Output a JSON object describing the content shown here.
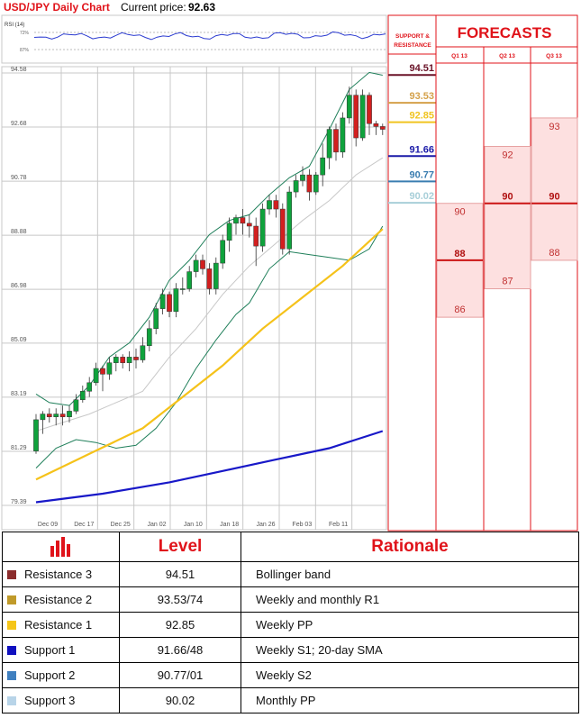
{
  "header": {
    "title": "USD/JPY Daily Chart",
    "price_label": "Current price:",
    "price_value": "92.63"
  },
  "rsi": {
    "label": "RSI (14)",
    "levels": [
      {
        "label": "72%",
        "value": 72
      },
      {
        "label": "87%",
        "value": 87
      }
    ]
  },
  "chart_data": [
    {
      "type": "candlestick",
      "title": "USD/JPY Daily Chart",
      "y_ticks": [
        "94.58",
        "92.68",
        "90.78",
        "88.88",
        "86.98",
        "85.09",
        "83.19",
        "81.29",
        "79.39"
      ],
      "x_ticks": [
        "Dec 09",
        "Dec 17",
        "Dec 25",
        "Jan 02",
        "Jan 10",
        "Jan 18",
        "Jan 26",
        "Feb 03",
        "Feb 11"
      ],
      "ylim": [
        79.39,
        94.58
      ],
      "grid": true,
      "candles": [
        {
          "o": 81.3,
          "h": 82.6,
          "l": 81.2,
          "c": 82.4
        },
        {
          "o": 82.4,
          "h": 82.7,
          "l": 81.9,
          "c": 82.6
        },
        {
          "o": 82.6,
          "h": 82.8,
          "l": 82.3,
          "c": 82.5
        },
        {
          "o": 82.5,
          "h": 82.8,
          "l": 82.2,
          "c": 82.6
        },
        {
          "o": 82.6,
          "h": 82.9,
          "l": 82.2,
          "c": 82.5
        },
        {
          "o": 82.5,
          "h": 82.9,
          "l": 82.3,
          "c": 82.7
        },
        {
          "o": 82.7,
          "h": 83.3,
          "l": 82.6,
          "c": 83.1
        },
        {
          "o": 83.1,
          "h": 83.6,
          "l": 83.0,
          "c": 83.4
        },
        {
          "o": 83.4,
          "h": 83.9,
          "l": 83.2,
          "c": 83.7
        },
        {
          "o": 83.7,
          "h": 84.4,
          "l": 83.6,
          "c": 84.2
        },
        {
          "o": 84.2,
          "h": 84.3,
          "l": 83.4,
          "c": 84.0
        },
        {
          "o": 84.0,
          "h": 84.6,
          "l": 83.8,
          "c": 84.4
        },
        {
          "o": 84.4,
          "h": 84.7,
          "l": 84.1,
          "c": 84.6
        },
        {
          "o": 84.6,
          "h": 84.7,
          "l": 84.2,
          "c": 84.4
        },
        {
          "o": 84.4,
          "h": 84.8,
          "l": 84.1,
          "c": 84.6
        },
        {
          "o": 84.6,
          "h": 84.9,
          "l": 84.2,
          "c": 84.5
        },
        {
          "o": 84.5,
          "h": 85.3,
          "l": 84.4,
          "c": 85.0
        },
        {
          "o": 85.0,
          "h": 85.9,
          "l": 84.8,
          "c": 85.6
        },
        {
          "o": 85.6,
          "h": 86.5,
          "l": 85.4,
          "c": 86.3
        },
        {
          "o": 86.3,
          "h": 87.0,
          "l": 86.1,
          "c": 86.8
        },
        {
          "o": 86.8,
          "h": 86.9,
          "l": 86.0,
          "c": 86.2
        },
        {
          "o": 86.2,
          "h": 87.2,
          "l": 86.0,
          "c": 87.0
        },
        {
          "o": 87.0,
          "h": 87.4,
          "l": 86.8,
          "c": 87.0
        },
        {
          "o": 87.0,
          "h": 87.8,
          "l": 86.9,
          "c": 87.6
        },
        {
          "o": 87.6,
          "h": 88.2,
          "l": 87.4,
          "c": 88.0
        },
        {
          "o": 88.0,
          "h": 88.2,
          "l": 87.5,
          "c": 87.7
        },
        {
          "o": 87.7,
          "h": 87.9,
          "l": 86.8,
          "c": 87.0
        },
        {
          "o": 87.0,
          "h": 88.1,
          "l": 86.8,
          "c": 87.9
        },
        {
          "o": 87.9,
          "h": 88.9,
          "l": 87.7,
          "c": 88.7
        },
        {
          "o": 88.7,
          "h": 89.5,
          "l": 88.3,
          "c": 89.3
        },
        {
          "o": 89.3,
          "h": 89.6,
          "l": 88.9,
          "c": 89.5
        },
        {
          "o": 89.5,
          "h": 89.8,
          "l": 88.9,
          "c": 89.3
        },
        {
          "o": 89.3,
          "h": 89.6,
          "l": 88.8,
          "c": 89.2
        },
        {
          "o": 89.2,
          "h": 89.5,
          "l": 87.8,
          "c": 88.5
        },
        {
          "o": 88.5,
          "h": 90.0,
          "l": 88.3,
          "c": 89.8
        },
        {
          "o": 89.8,
          "h": 90.3,
          "l": 89.6,
          "c": 90.1
        },
        {
          "o": 90.1,
          "h": 90.3,
          "l": 89.5,
          "c": 89.8
        },
        {
          "o": 89.8,
          "h": 90.0,
          "l": 88.2,
          "c": 88.4
        },
        {
          "o": 88.4,
          "h": 90.6,
          "l": 88.2,
          "c": 90.4
        },
        {
          "o": 90.4,
          "h": 91.0,
          "l": 90.2,
          "c": 90.8
        },
        {
          "o": 90.8,
          "h": 91.3,
          "l": 90.6,
          "c": 91.0
        },
        {
          "o": 91.0,
          "h": 91.2,
          "l": 90.1,
          "c": 90.4
        },
        {
          "o": 90.4,
          "h": 91.1,
          "l": 90.3,
          "c": 91.0
        },
        {
          "o": 91.0,
          "h": 92.1,
          "l": 90.6,
          "c": 91.6
        },
        {
          "o": 91.6,
          "h": 92.7,
          "l": 91.2,
          "c": 92.6
        },
        {
          "o": 92.6,
          "h": 92.8,
          "l": 91.5,
          "c": 91.8
        },
        {
          "o": 91.8,
          "h": 93.2,
          "l": 91.6,
          "c": 93.0
        },
        {
          "o": 93.0,
          "h": 94.1,
          "l": 92.8,
          "c": 93.8
        },
        {
          "o": 93.8,
          "h": 94.0,
          "l": 92.0,
          "c": 92.3
        },
        {
          "o": 92.3,
          "h": 94.0,
          "l": 92.2,
          "c": 93.8
        },
        {
          "o": 93.8,
          "h": 93.9,
          "l": 92.4,
          "c": 92.8
        },
        {
          "o": 92.8,
          "h": 92.9,
          "l": 92.4,
          "c": 92.7
        },
        {
          "o": 92.7,
          "h": 92.8,
          "l": 92.4,
          "c": 92.6
        }
      ],
      "series": [
        {
          "key": "bb_upper",
          "color": "#1f7f5a",
          "points": [
            [
              0,
              83.3
            ],
            [
              2,
              83.0
            ],
            [
              5,
              82.9
            ],
            [
              8,
              83.6
            ],
            [
              11,
              84.6
            ],
            [
              14,
              85.1
            ],
            [
              17,
              86.0
            ],
            [
              20,
              87.3
            ],
            [
              23,
              88.0
            ],
            [
              26,
              88.9
            ],
            [
              29,
              89.4
            ],
            [
              32,
              89.6
            ],
            [
              35,
              90.3
            ],
            [
              38,
              90.9
            ],
            [
              41,
              91.3
            ],
            [
              44,
              92.6
            ],
            [
              47,
              94.0
            ],
            [
              50,
              94.6
            ],
            [
              52,
              94.5
            ]
          ]
        },
        {
          "key": "bb_lower",
          "color": "#1f7f5a",
          "points": [
            [
              0,
              80.7
            ],
            [
              3,
              81.4
            ],
            [
              6,
              81.7
            ],
            [
              9,
              81.6
            ],
            [
              12,
              81.4
            ],
            [
              15,
              81.5
            ],
            [
              18,
              82.1
            ],
            [
              21,
              83.0
            ],
            [
              24,
              84.2
            ],
            [
              27,
              85.2
            ],
            [
              30,
              86.1
            ],
            [
              32,
              86.5
            ],
            [
              35,
              87.7
            ],
            [
              38,
              88.3
            ],
            [
              41,
              88.2
            ],
            [
              44,
              88.1
            ],
            [
              47,
              88.0
            ],
            [
              50,
              88.4
            ],
            [
              52,
              89.2
            ]
          ]
        },
        {
          "key": "bb_mid",
          "color": "#c8c8c8",
          "points": [
            [
              0,
              82.0
            ],
            [
              4,
              82.3
            ],
            [
              8,
              82.6
            ],
            [
              12,
              83.0
            ],
            [
              16,
              83.4
            ],
            [
              20,
              84.6
            ],
            [
              24,
              85.6
            ],
            [
              28,
              86.8
            ],
            [
              32,
              87.8
            ],
            [
              36,
              88.6
            ],
            [
              40,
              89.4
            ],
            [
              44,
              90.1
            ],
            [
              48,
              91.0
            ],
            [
              52,
              91.6
            ]
          ]
        },
        {
          "key": "sma_yellow",
          "color": "#f5c21a",
          "points": [
            [
              0,
              80.3
            ],
            [
              8,
              81.2
            ],
            [
              16,
              82.1
            ],
            [
              22,
              83.2
            ],
            [
              28,
              84.3
            ],
            [
              34,
              85.6
            ],
            [
              40,
              86.7
            ],
            [
              46,
              87.8
            ],
            [
              52,
              89.1
            ]
          ]
        },
        {
          "key": "sma_blue",
          "color": "#1818c8",
          "points": [
            [
              0,
              79.5
            ],
            [
              10,
              79.8
            ],
            [
              20,
              80.2
            ],
            [
              28,
              80.6
            ],
            [
              36,
              81.0
            ],
            [
              44,
              81.4
            ],
            [
              48,
              81.7
            ],
            [
              52,
              82.0
            ]
          ]
        }
      ]
    },
    {
      "type": "table",
      "title": "FORECASTS",
      "quarters": [
        "Q1 13",
        "Q2 13",
        "Q3 13"
      ],
      "forecasts": [
        {
          "quarter": "Q1 13",
          "high": 90,
          "median": 88,
          "low": 86
        },
        {
          "quarter": "Q2 13",
          "high": 92,
          "median": 90,
          "low": 87
        },
        {
          "quarter": "Q3 13",
          "high": 93,
          "median": 90,
          "low": 88
        }
      ]
    }
  ],
  "sr_panel": {
    "title": "SUPPORT & RESISTANCE",
    "levels": [
      {
        "label": "94.51",
        "value": 94.51,
        "color": "#6a1328"
      },
      {
        "label": "93.53",
        "value": 93.53,
        "color": "#d4a14a"
      },
      {
        "label": "92.85",
        "value": 92.85,
        "color": "#f0c420"
      },
      {
        "label": "91.66",
        "value": 91.66,
        "color": "#1a1aa8"
      },
      {
        "label": "90.77",
        "value": 90.77,
        "color": "#3a7db0"
      },
      {
        "label": "90.02",
        "value": 90.02,
        "color": "#a8cfd9"
      }
    ]
  },
  "table": {
    "level_header": "Level",
    "rationale_header": "Rationale",
    "rows": [
      {
        "name": "Resistance 3",
        "value": "94.51",
        "rationale": "Bollinger band",
        "color": "#8b2c2c"
      },
      {
        "name": "Resistance 2",
        "value": "93.53/74",
        "rationale": "Weekly and monthly R1",
        "color": "#c09a2a"
      },
      {
        "name": "Resistance 1",
        "value": "92.85",
        "rationale": "Weekly PP",
        "color": "#f5c518"
      },
      {
        "name": "Support 1",
        "value": "91.66/48",
        "rationale": "Weekly S1; 20-day SMA",
        "color": "#1010c0"
      },
      {
        "name": "Support 2",
        "value": "90.77/01",
        "rationale": "Weekly S2",
        "color": "#3f7fbf"
      },
      {
        "name": "Support 3",
        "value": "90.02",
        "rationale": "Monthly PP",
        "color": "#b8d4e8"
      }
    ]
  },
  "colors": {
    "accent": "#e0131a",
    "up_candle": "#0fa23c",
    "down_candle": "#d21f1f"
  }
}
